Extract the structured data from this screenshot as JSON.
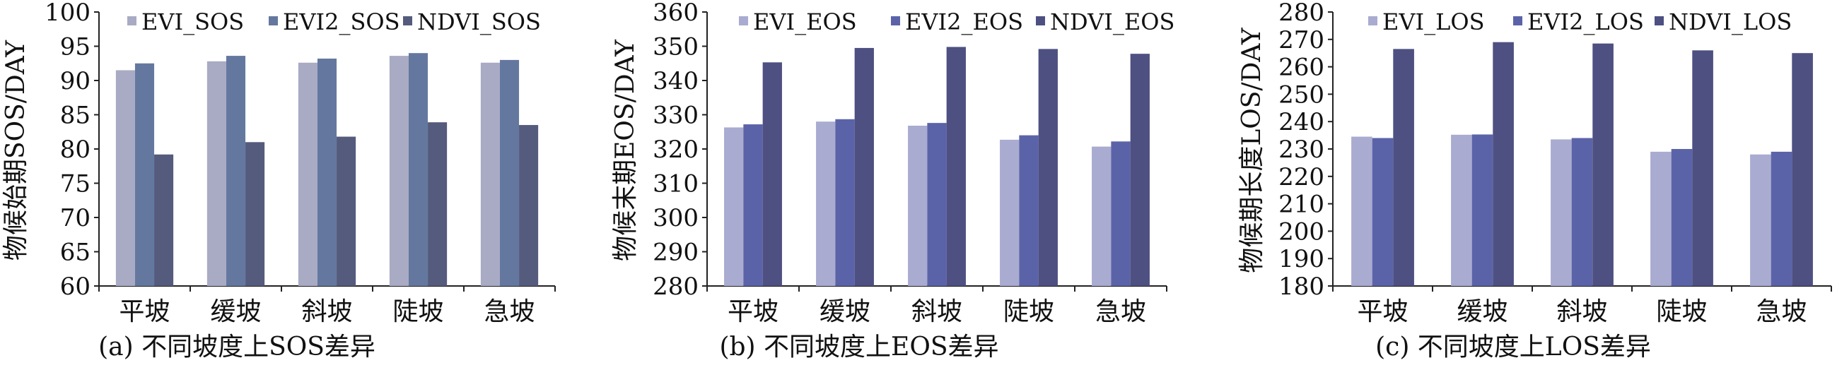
{
  "chart_data": [
    {
      "type": "bar",
      "title": "",
      "caption": "(a) 不同坡度上SOS差异",
      "xlabel": "",
      "ylabel": "物候始期SOS/DAY",
      "categories": [
        "平坡",
        "缓坡",
        "斜坡",
        "陡坡",
        "急坡"
      ],
      "ylim": [
        60,
        100
      ],
      "yticks": [
        60,
        65,
        70,
        75,
        80,
        85,
        90,
        95,
        100
      ],
      "legend_position": "top",
      "grid": false,
      "series": [
        {
          "name": "EVI_SOS",
          "color": "#a9abc4",
          "values": [
            91.5,
            92.8,
            92.6,
            93.6,
            92.6
          ]
        },
        {
          "name": "EVI2_SOS",
          "color": "#64789f",
          "values": [
            92.5,
            93.6,
            93.2,
            94.0,
            93.0
          ]
        },
        {
          "name": "NDVI_SOS",
          "color": "#555b7c",
          "values": [
            79.2,
            81.0,
            81.8,
            83.9,
            83.5
          ]
        }
      ]
    },
    {
      "type": "bar",
      "title": "",
      "caption": "(b) 不同坡度上EOS差异",
      "xlabel": "",
      "ylabel": "物候末期EOS/DAY",
      "categories": [
        "平坡",
        "缓坡",
        "斜坡",
        "陡坡",
        "急坡"
      ],
      "ylim": [
        280,
        360
      ],
      "yticks": [
        280,
        290,
        300,
        310,
        320,
        330,
        340,
        350,
        360
      ],
      "legend_position": "top",
      "grid": false,
      "series": [
        {
          "name": "EVI_EOS",
          "color": "#a9abd0",
          "values": [
            326.3,
            328.0,
            326.8,
            322.7,
            320.7
          ]
        },
        {
          "name": "EVI2_EOS",
          "color": "#5b63a8",
          "values": [
            327.2,
            328.7,
            327.6,
            324.0,
            322.2
          ]
        },
        {
          "name": "NDVI_EOS",
          "color": "#4d5081",
          "values": [
            345.3,
            349.5,
            349.8,
            349.2,
            347.8
          ]
        }
      ]
    },
    {
      "type": "bar",
      "title": "",
      "caption": "(c) 不同坡度上LOS差异",
      "xlabel": "",
      "ylabel": "物候期长度LOS/DAY",
      "categories": [
        "平坡",
        "缓坡",
        "斜坡",
        "陡坡",
        "急坡"
      ],
      "ylim": [
        180,
        280
      ],
      "yticks": [
        180,
        190,
        200,
        210,
        220,
        230,
        240,
        250,
        260,
        270,
        280
      ],
      "legend_position": "top",
      "grid": false,
      "series": [
        {
          "name": "EVI_LOS",
          "color": "#a9abd0",
          "values": [
            234.5,
            235.2,
            233.5,
            229.0,
            228.0
          ]
        },
        {
          "name": "EVI2_LOS",
          "color": "#5b63a8",
          "values": [
            234.0,
            235.3,
            234.0,
            230.0,
            229.0
          ]
        },
        {
          "name": "NDVI_LOS",
          "color": "#4d5081",
          "values": [
            266.5,
            269.0,
            268.5,
            266.0,
            265.0
          ]
        }
      ]
    }
  ]
}
